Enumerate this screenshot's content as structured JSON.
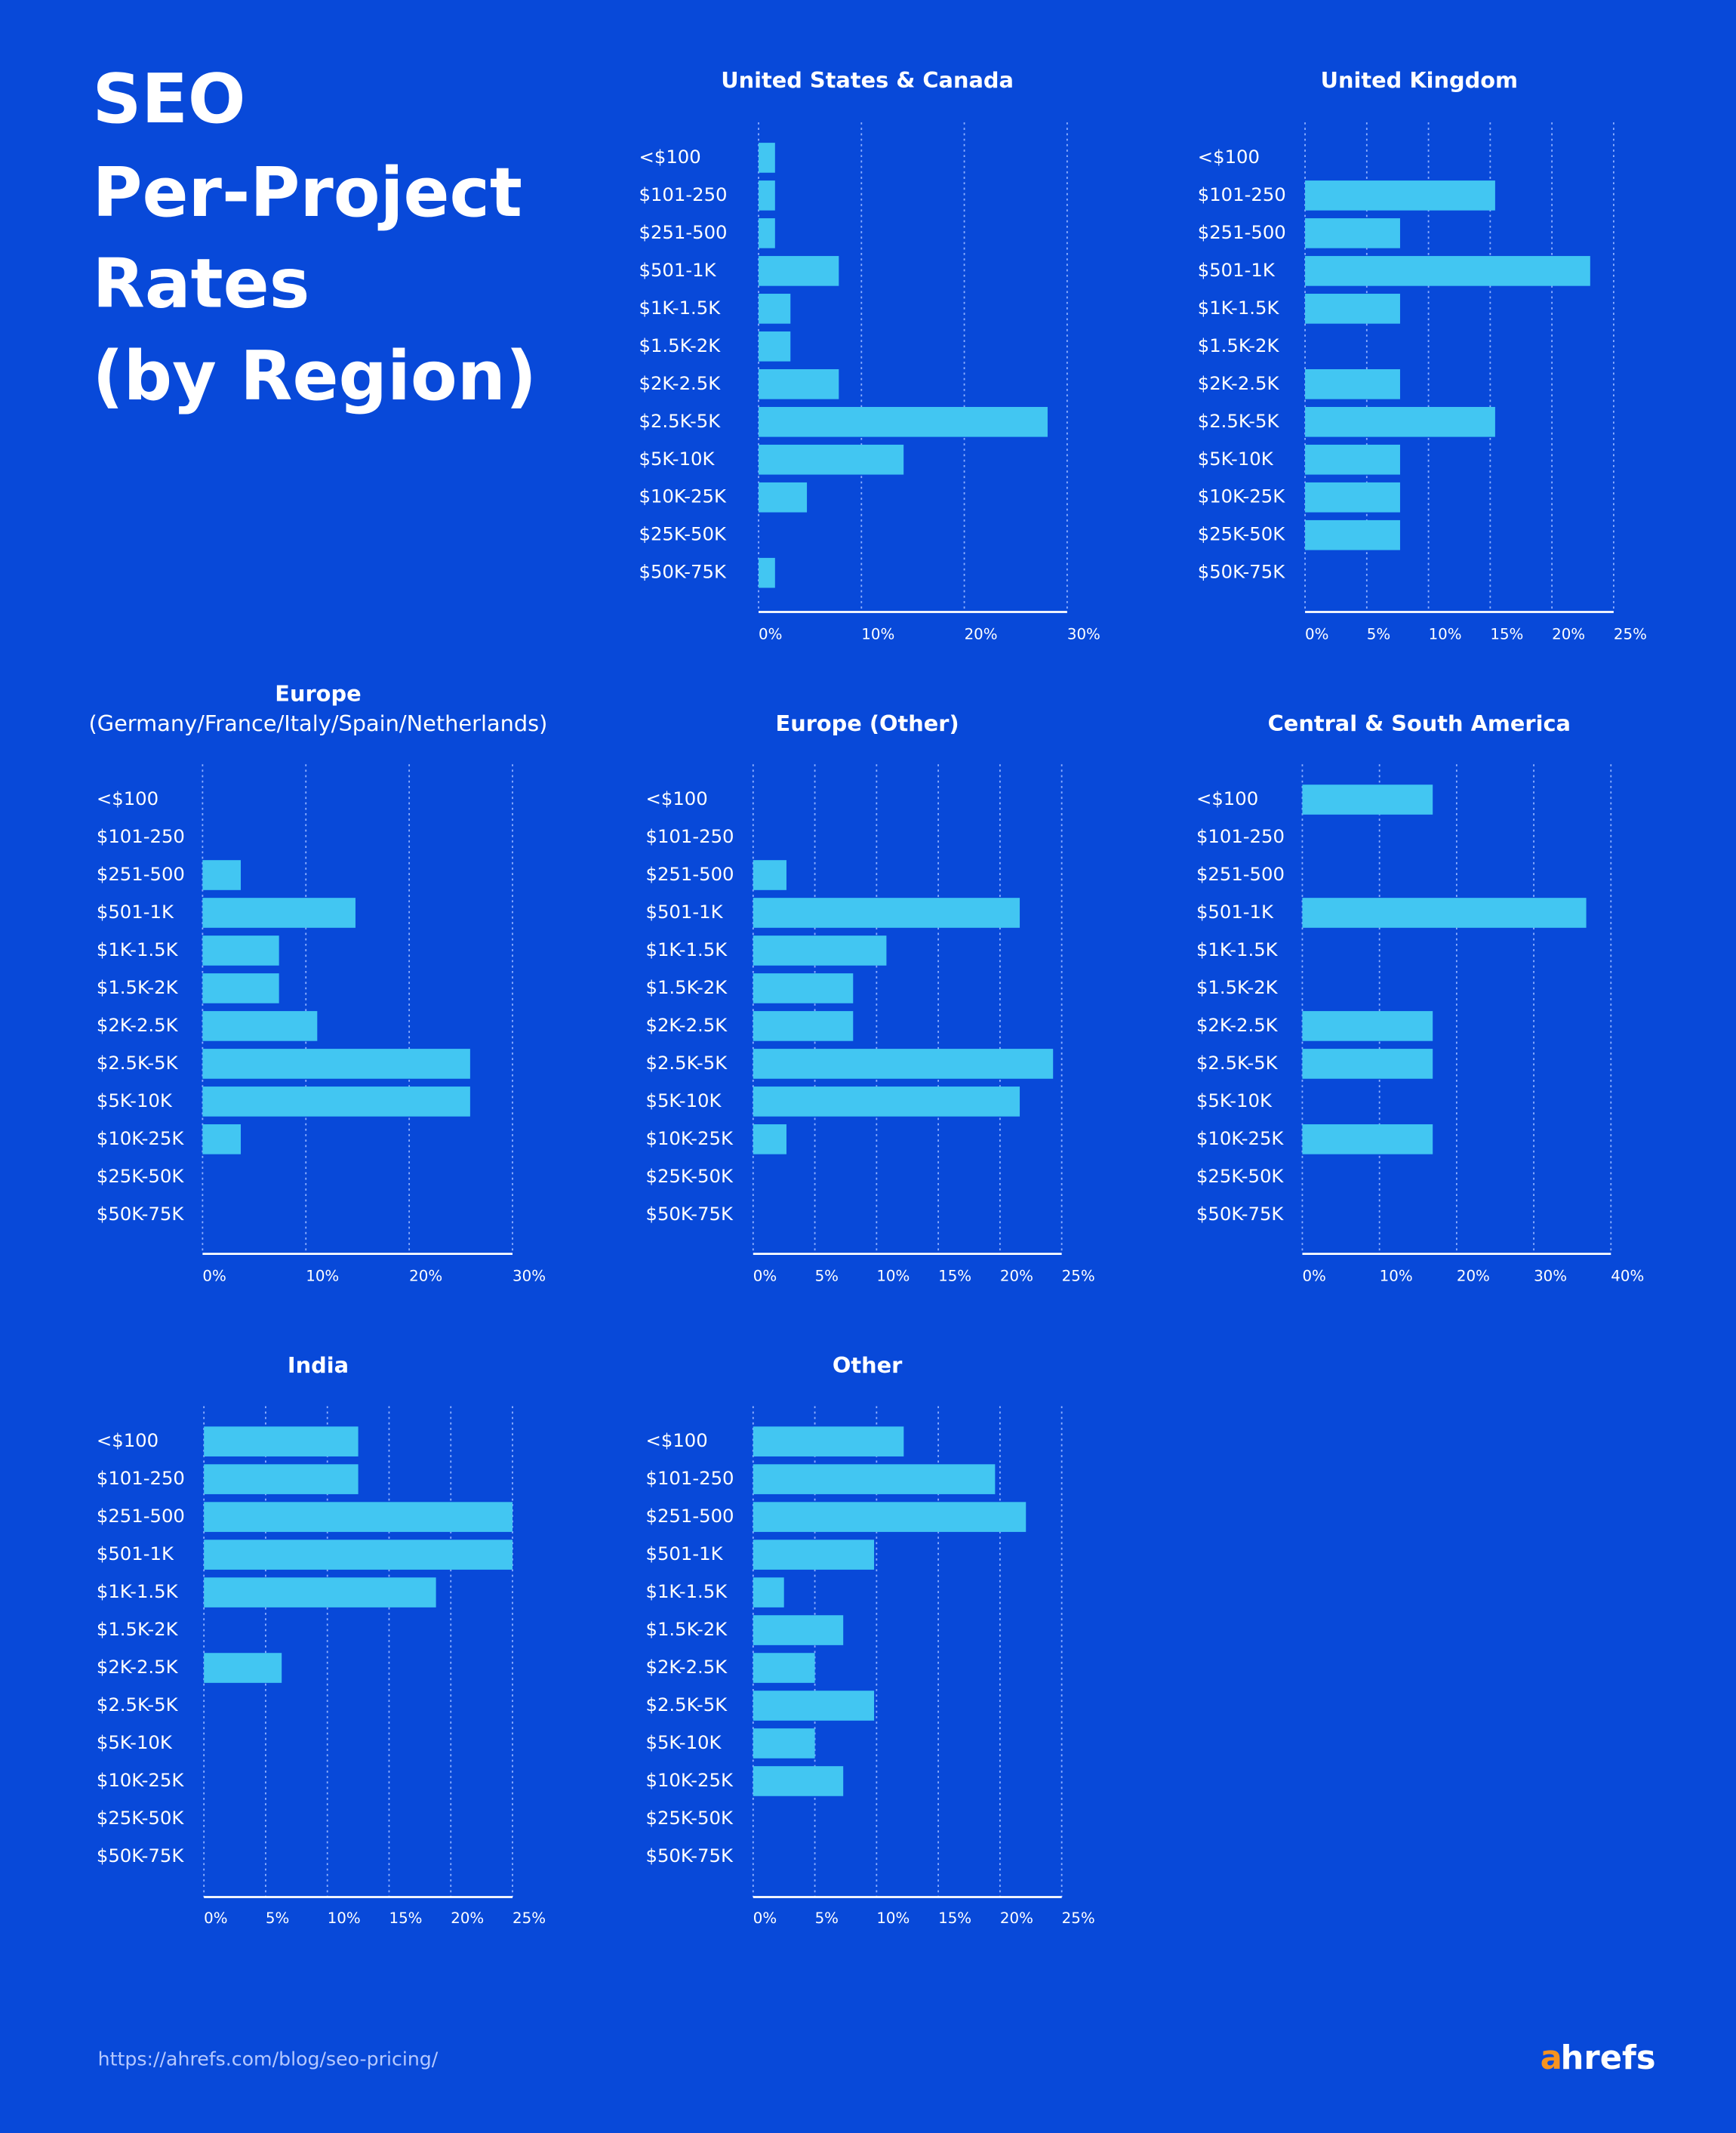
{
  "header": {
    "title_lines": [
      "SEO",
      "Per-Project",
      "Rates",
      "(by Region)"
    ]
  },
  "footer": {
    "url": "https://ahrefs.com/blog/seo-pricing/",
    "logo": {
      "accent": "a",
      "rest": "hrefs"
    }
  },
  "chart_data": [
    {
      "type": "barh",
      "title": "United States & Canada",
      "color": "#42c6f2",
      "grid": true,
      "categories": [
        "<$100",
        "$101-250",
        "$251-500",
        "$501-1K",
        "$1K-1.5K",
        "$1.5K-2K",
        "$2K-2.5K",
        "$2.5K-5K",
        "$5K-10K",
        "$10K-25K",
        "$25K-50K",
        "$50K-75K"
      ],
      "values": [
        1.6,
        1.6,
        1.6,
        7.8,
        3.1,
        3.1,
        7.8,
        28.1,
        14.1,
        4.7,
        0,
        1.6
      ],
      "xlim": [
        0,
        30
      ],
      "xticks": [
        {
          "value": 0,
          "label": "0%"
        },
        {
          "value": 10,
          "label": "10%"
        },
        {
          "value": 20,
          "label": "20%"
        },
        {
          "value": 30,
          "label": "30%"
        }
      ]
    },
    {
      "type": "barh",
      "title": "United Kingdom",
      "color": "#42c6f2",
      "grid": true,
      "categories": [
        "<$100",
        "$101-250",
        "$251-500",
        "$501-1K",
        "$1K-1.5K",
        "$1.5K-2K",
        "$2K-2.5K",
        "$2.5K-5K",
        "$5K-10K",
        "$10K-25K",
        "$25K-50K",
        "$50K-75K"
      ],
      "values": [
        0,
        15.4,
        7.7,
        23.1,
        7.7,
        0,
        7.7,
        15.4,
        7.7,
        7.7,
        7.7,
        0
      ],
      "xlim": [
        0,
        25
      ],
      "xticks": [
        {
          "value": 0,
          "label": "0%"
        },
        {
          "value": 5,
          "label": "5%"
        },
        {
          "value": 10,
          "label": "10%"
        },
        {
          "value": 15,
          "label": "15%"
        },
        {
          "value": 20,
          "label": "20%"
        },
        {
          "value": 25,
          "label": "25%"
        }
      ]
    },
    {
      "type": "barh",
      "title": "Europe",
      "subtitle": "(Germany/France/Italy/Spain/Netherlands)",
      "color": "#42c6f2",
      "grid": true,
      "categories": [
        "<$100",
        "$101-250",
        "$251-500",
        "$501-1K",
        "$1K-1.5K",
        "$1.5K-2K",
        "$2K-2.5K",
        "$2.5K-5K",
        "$5K-10K",
        "$10K-25K",
        "$25K-50K",
        "$50K-75K"
      ],
      "values": [
        0,
        0,
        3.7,
        14.8,
        7.4,
        7.4,
        11.1,
        25.9,
        25.9,
        3.7,
        0,
        0
      ],
      "xlim": [
        0,
        30
      ],
      "xticks": [
        {
          "value": 0,
          "label": "0%"
        },
        {
          "value": 10,
          "label": "10%"
        },
        {
          "value": 20,
          "label": "20%"
        },
        {
          "value": 30,
          "label": "30%"
        }
      ]
    },
    {
      "type": "barh",
      "title": "Europe (Other)",
      "color": "#42c6f2",
      "grid": true,
      "categories": [
        "<$100",
        "$101-250",
        "$251-500",
        "$501-1K",
        "$1K-1.5K",
        "$1.5K-2K",
        "$2K-2.5K",
        "$2.5K-5K",
        "$5K-10K",
        "$10K-25K",
        "$25K-50K",
        "$50K-75K"
      ],
      "values": [
        0,
        0,
        2.7,
        21.6,
        10.8,
        8.1,
        8.1,
        24.3,
        21.6,
        2.7,
        0,
        0
      ],
      "xlim": [
        0,
        25
      ],
      "xticks": [
        {
          "value": 0,
          "label": "0%"
        },
        {
          "value": 5,
          "label": "5%"
        },
        {
          "value": 10,
          "label": "10%"
        },
        {
          "value": 15,
          "label": "15%"
        },
        {
          "value": 20,
          "label": "20%"
        },
        {
          "value": 25,
          "label": "25%"
        }
      ]
    },
    {
      "type": "barh",
      "title": "Central & South America",
      "color": "#42c6f2",
      "grid": true,
      "categories": [
        "<$100",
        "$101-250",
        "$251-500",
        "$501-1K",
        "$1K-1.5K",
        "$1.5K-2K",
        "$2K-2.5K",
        "$2.5K-5K",
        "$5K-10K",
        "$10K-25K",
        "$25K-50K",
        "$50K-75K"
      ],
      "values": [
        16.9,
        0,
        0,
        36.8,
        0,
        0,
        16.9,
        16.9,
        0,
        16.9,
        0,
        0
      ],
      "xlim": [
        0,
        40
      ],
      "xticks": [
        {
          "value": 0,
          "label": "0%"
        },
        {
          "value": 10,
          "label": "10%"
        },
        {
          "value": 20,
          "label": "20%"
        },
        {
          "value": 30,
          "label": "30%"
        },
        {
          "value": 40,
          "label": "40%"
        }
      ]
    },
    {
      "type": "barh",
      "title": "India",
      "color": "#42c6f2",
      "grid": true,
      "categories": [
        "<$100",
        "$101-250",
        "$251-500",
        "$501-1K",
        "$1K-1.5K",
        "$1.5K-2K",
        "$2K-2.5K",
        "$2.5K-5K",
        "$5K-10K",
        "$10K-25K",
        "$25K-50K",
        "$50K-75K"
      ],
      "values": [
        12.5,
        12.5,
        25,
        25,
        18.8,
        0,
        6.3,
        0,
        0,
        0,
        0,
        0
      ],
      "xlim": [
        0,
        25
      ],
      "xticks": [
        {
          "value": 0,
          "label": "0%"
        },
        {
          "value": 5,
          "label": "5%"
        },
        {
          "value": 10,
          "label": "10%"
        },
        {
          "value": 15,
          "label": "15%"
        },
        {
          "value": 20,
          "label": "20%"
        },
        {
          "value": 25,
          "label": "25%"
        }
      ]
    },
    {
      "type": "barh",
      "title": "Other",
      "color": "#42c6f2",
      "grid": true,
      "categories": [
        "<$100",
        "$101-250",
        "$251-500",
        "$501-1K",
        "$1K-1.5K",
        "$1.5K-2K",
        "$2K-2.5K",
        "$2.5K-5K",
        "$5K-10K",
        "$10K-25K",
        "$25K-50K",
        "$50K-75K"
      ],
      "values": [
        12.2,
        19.6,
        22.1,
        9.8,
        2.5,
        7.3,
        5,
        9.8,
        5,
        7.3,
        0,
        0
      ],
      "xlim": [
        0,
        25
      ],
      "xticks": [
        {
          "value": 0,
          "label": "0%"
        },
        {
          "value": 5,
          "label": "5%"
        },
        {
          "value": 10,
          "label": "10%"
        },
        {
          "value": 15,
          "label": "15%"
        },
        {
          "value": 20,
          "label": "20%"
        },
        {
          "value": 25,
          "label": "25%"
        }
      ]
    }
  ]
}
